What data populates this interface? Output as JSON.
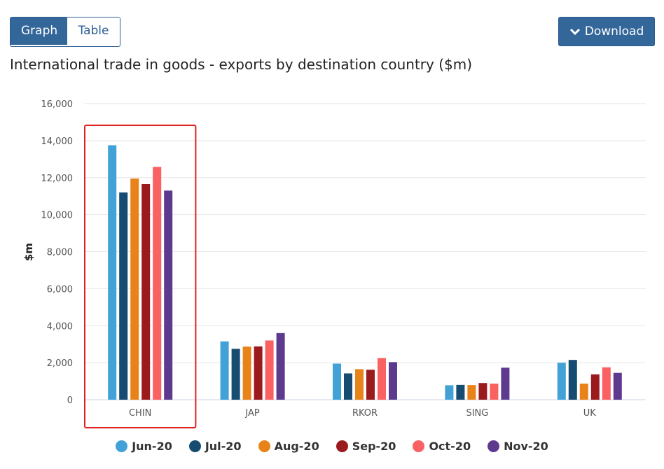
{
  "toolbar": {
    "tabs": [
      {
        "label": "Graph",
        "active": true
      },
      {
        "label": "Table",
        "active": false
      }
    ],
    "download_label": "Download",
    "download_icon": "chevron-down-icon"
  },
  "chart_data": {
    "type": "bar",
    "title": "International trade in goods - exports by destination country ($m)",
    "xlabel": "",
    "ylabel": "$m",
    "ylim": [
      0,
      16000
    ],
    "yticks": [
      "0",
      "2,000",
      "4,000",
      "6,000",
      "8,000",
      "10,000",
      "12,000",
      "14,000",
      "16,000"
    ],
    "grid": true,
    "legend_position": "bottom",
    "categories": [
      "CHIN",
      "JAP",
      "RKOR",
      "SING",
      "UK"
    ],
    "series": [
      {
        "name": "Jun-20",
        "color": "#42a1d6",
        "values": [
          13750,
          3150,
          1950,
          780,
          2000
        ]
      },
      {
        "name": "Jul-20",
        "color": "#164c72",
        "values": [
          11200,
          2750,
          1420,
          800,
          2150
        ]
      },
      {
        "name": "Aug-20",
        "color": "#e8831a",
        "values": [
          11950,
          2870,
          1650,
          790,
          870
        ]
      },
      {
        "name": "Sep-20",
        "color": "#9b1a1d",
        "values": [
          11650,
          2880,
          1620,
          900,
          1370
        ]
      },
      {
        "name": "Oct-20",
        "color": "#f96163",
        "values": [
          12580,
          3200,
          2250,
          870,
          1750
        ]
      },
      {
        "name": "Nov-20",
        "color": "#5d3a8e",
        "values": [
          11300,
          3600,
          2030,
          1730,
          1450
        ]
      }
    ],
    "highlight": {
      "category": "CHIN",
      "color": "#e02020"
    }
  }
}
